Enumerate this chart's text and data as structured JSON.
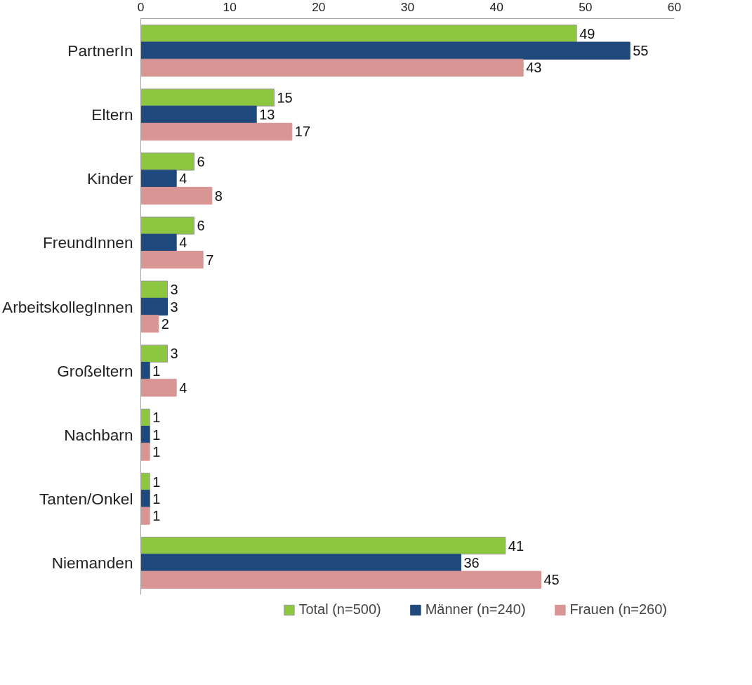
{
  "chart_data": {
    "type": "bar",
    "orientation": "horizontal",
    "categories": [
      "PartnerIn",
      "Eltern",
      "Kinder",
      "FreundInnen",
      "ArbeitskollegInnen",
      "Großeltern",
      "Nachbarn",
      "Tanten/Onkel",
      "Niemanden"
    ],
    "series": [
      {
        "name": "Total (n=500)",
        "color": "#8dc63f",
        "values": [
          49,
          15,
          6,
          6,
          3,
          3,
          1,
          1,
          41
        ]
      },
      {
        "name": "Männer (n=240)",
        "color": "#1f497d",
        "values": [
          55,
          13,
          4,
          4,
          3,
          1,
          1,
          1,
          36
        ]
      },
      {
        "name": "Frauen (n=260)",
        "color": "#d99594",
        "values": [
          43,
          17,
          8,
          7,
          2,
          4,
          1,
          1,
          45
        ]
      }
    ],
    "xlim": [
      0,
      60
    ],
    "xticks": [
      0,
      10,
      20,
      30,
      40,
      50,
      60
    ],
    "data_labels": true,
    "grid": false,
    "legend": "bottom"
  }
}
